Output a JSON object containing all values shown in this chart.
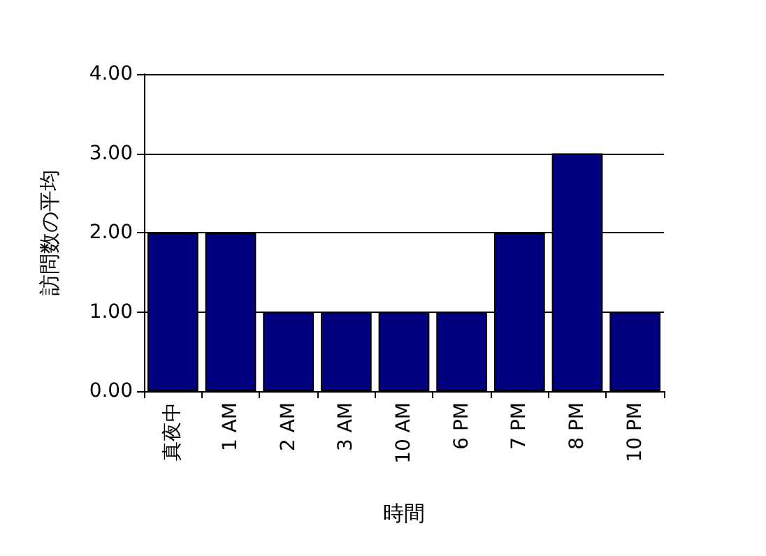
{
  "chart_data": {
    "type": "bar",
    "xlabel": "時間",
    "ylabel": "訪問数の平均",
    "categories": [
      "真夜中",
      "1 AM",
      "2 AM",
      "3 AM",
      "10 AM",
      "6 PM",
      "7 PM",
      "8 PM",
      "10 PM"
    ],
    "values": [
      2,
      2,
      1,
      1,
      1,
      1,
      2,
      3,
      1
    ],
    "color": "#000080",
    "ylim": [
      0,
      4
    ],
    "yticks": [
      {
        "value": 0,
        "label": "0.00"
      },
      {
        "value": 1,
        "label": "1.00"
      },
      {
        "value": 2,
        "label": "2.00"
      },
      {
        "value": 3,
        "label": "3.00"
      },
      {
        "value": 4,
        "label": "4.00"
      }
    ],
    "grid": "y"
  }
}
